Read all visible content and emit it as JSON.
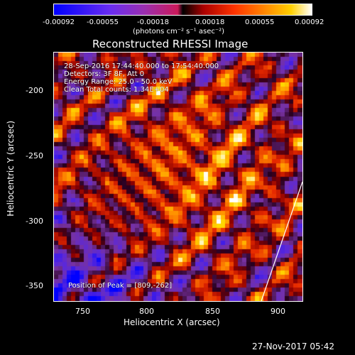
{
  "colorbar": {
    "ticks": [
      "-0.00092",
      "-0.00055",
      "-0.00018",
      "0.00018",
      "0.00055",
      "0.00092"
    ],
    "units": "(photons cm⁻² s⁻¹ asec⁻²)"
  },
  "title": "Reconstructed RHESSI Image",
  "overlay": {
    "line1": "28-Sep-2016 17:44:40.000 to 17:54:40.000",
    "line2": "Detectors: 3F 8F, Att 0",
    "line3": "Energy Range: 25.0 - 50.0 keV",
    "line4": "Clean    Total counts: 1.34E+04",
    "peak": "Position of Peak = [809,-262]"
  },
  "axes": {
    "xlabel": "Heliocentric X (arcsec)",
    "ylabel": "Heliocentric Y (arcsec)",
    "xticks": [
      "750",
      "800",
      "850",
      "900"
    ],
    "yticks": [
      "-200",
      "-250",
      "-300",
      "-350"
    ]
  },
  "footer": {
    "timestamp": "27-Nov-2017 05:42"
  }
}
